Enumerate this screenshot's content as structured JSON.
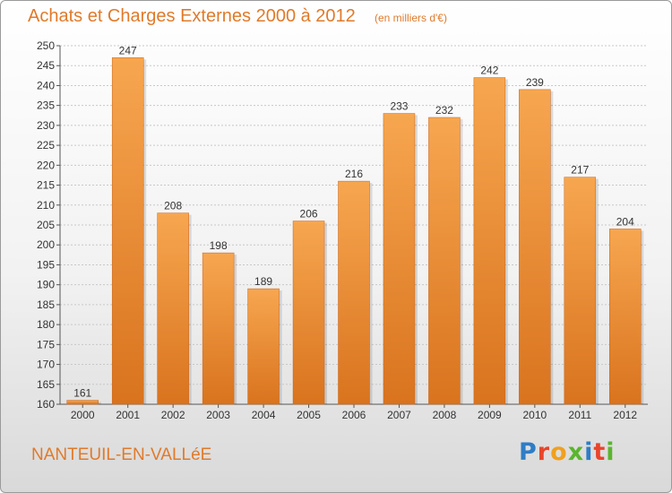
{
  "page": {
    "title": "Achats et Charges Externes 2000 à 2012",
    "unit_note": "(en milliers d'€)",
    "town": "NANTEUIL-EN-VALLéE",
    "logo": {
      "text": "Proxiti",
      "colors": [
        "#2e7dc6",
        "#e8452c",
        "#f0a01e",
        "#5bb52f",
        "#2e7dc6",
        "#e8452c",
        "#5bb52f"
      ]
    }
  },
  "colors": {
    "bar_top": "#f7a650",
    "bar_bottom": "#d9731e",
    "accent": "#e07a2a",
    "grid": "#c8c8c8"
  },
  "chart_data": {
    "type": "bar",
    "title": "Achats et Charges Externes 2000 à 2012",
    "xlabel": "",
    "ylabel": "",
    "categories": [
      "2000",
      "2001",
      "2002",
      "2003",
      "2004",
      "2005",
      "2006",
      "2007",
      "2008",
      "2009",
      "2010",
      "2011",
      "2012"
    ],
    "values": [
      161,
      247,
      208,
      198,
      189,
      206,
      216,
      233,
      232,
      242,
      239,
      217,
      204
    ],
    "ylim": [
      160,
      250
    ],
    "yticks": [
      160,
      165,
      170,
      175,
      180,
      185,
      190,
      195,
      200,
      205,
      210,
      215,
      220,
      225,
      230,
      235,
      240,
      245,
      250
    ],
    "grid": true,
    "legend": "none"
  }
}
